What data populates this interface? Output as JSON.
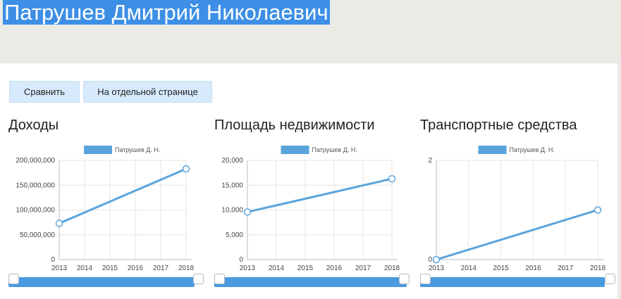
{
  "person_name": "Патрушев Дмитрий Николаевич",
  "buttons": {
    "compare": "Сравнить",
    "separate_page": "На отдельной странице"
  },
  "charts": [
    {
      "title": "Доходы"
    },
    {
      "title": "Площадь недвижимости"
    },
    {
      "title": "Транспортные средства"
    }
  ],
  "chart_data": [
    {
      "type": "line",
      "title": "Доходы",
      "x": [
        2013,
        2014,
        2015,
        2016,
        2017,
        2018
      ],
      "series": [
        {
          "name": "Патрушев Д. Н.",
          "points": [
            [
              2013,
              73000000
            ],
            [
              2018,
              183000000
            ]
          ]
        }
      ],
      "y_ticks": [
        "0",
        "50,000,000",
        "100,000,000",
        "150,000,000",
        "200,000,000"
      ],
      "ylim": [
        0,
        200000000
      ],
      "legend": "top",
      "grid": true,
      "color": "#5aa4dc"
    },
    {
      "type": "line",
      "title": "Площадь недвижимости",
      "x": [
        2013,
        2014,
        2015,
        2016,
        2017,
        2018
      ],
      "series": [
        {
          "name": "Патрушев Д. Н.",
          "points": [
            [
              2013,
              9600
            ],
            [
              2018,
              16300
            ]
          ]
        }
      ],
      "y_ticks": [
        "0",
        "5,000",
        "10,000",
        "15,000",
        "20,000"
      ],
      "ylim": [
        0,
        20000
      ],
      "legend": "top",
      "grid": true,
      "color": "#5aa4dc"
    },
    {
      "type": "line",
      "title": "Транспортные средства",
      "x": [
        2013,
        2014,
        2015,
        2016,
        2017,
        2018
      ],
      "series": [
        {
          "name": "Патрушев Д. Н.",
          "points": [
            [
              2013,
              0
            ],
            [
              2018,
              1
            ]
          ]
        }
      ],
      "y_ticks": [
        "0",
        "2"
      ],
      "ylim": [
        0,
        2
      ],
      "legend": "top",
      "grid": true,
      "color": "#5aa4dc"
    }
  ]
}
